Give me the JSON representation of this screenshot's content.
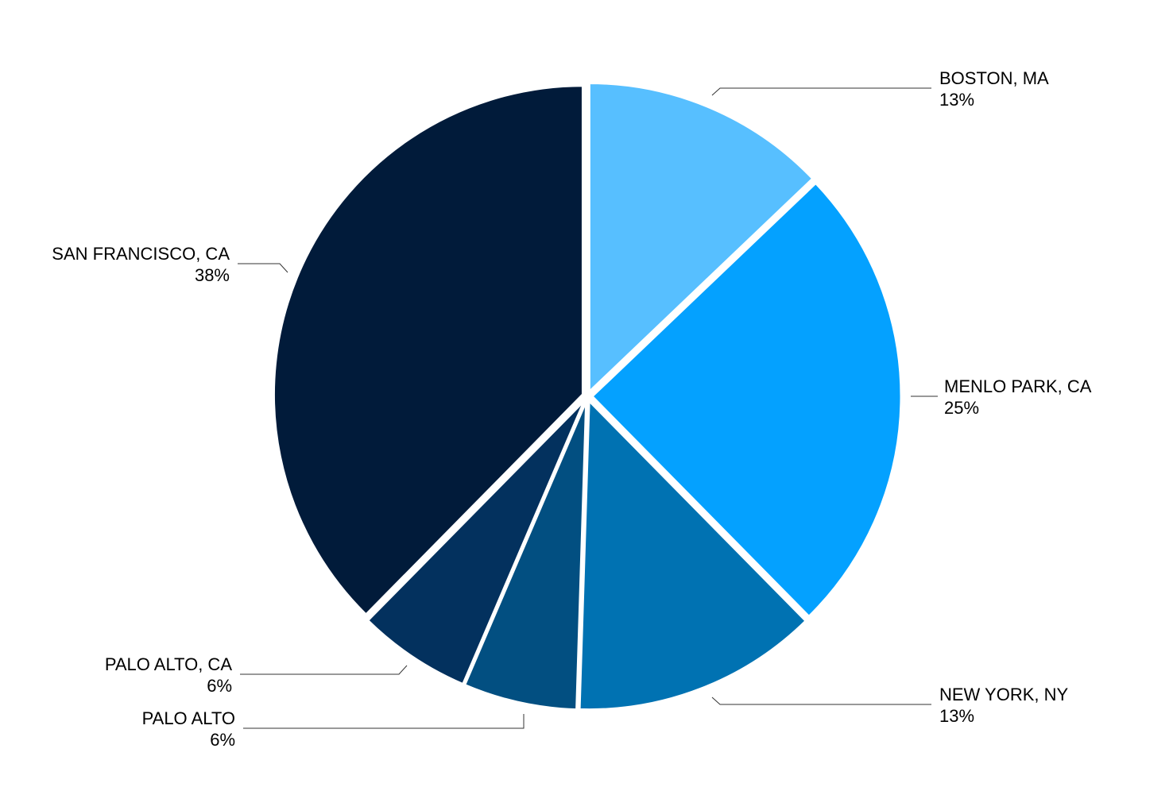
{
  "chart_data": {
    "type": "pie",
    "title": "",
    "slices": [
      {
        "label": "BOSTON, MA",
        "value": 13,
        "value_label": "13%",
        "color": "#57BFFF"
      },
      {
        "label": "MENLO PARK, CA",
        "value": 25,
        "value_label": "25%",
        "color": "#04A1FF"
      },
      {
        "label": "NEW YORK, NY",
        "value": 13,
        "value_label": "13%",
        "color": "#0072B2"
      },
      {
        "label": "PALO ALTO",
        "value": 6,
        "value_label": "6%",
        "color": "#024F81"
      },
      {
        "label": "PALO ALTO, CA",
        "value": 6,
        "value_label": "6%",
        "color": "#03315E"
      },
      {
        "label": "SAN FRANCISCO, CA",
        "value": 38,
        "value_label": "38%",
        "color": "#011B3A"
      }
    ],
    "start_angle_deg": 0,
    "direction": "clockwise",
    "legend": "none",
    "labels": "outside-with-leader-lines"
  }
}
